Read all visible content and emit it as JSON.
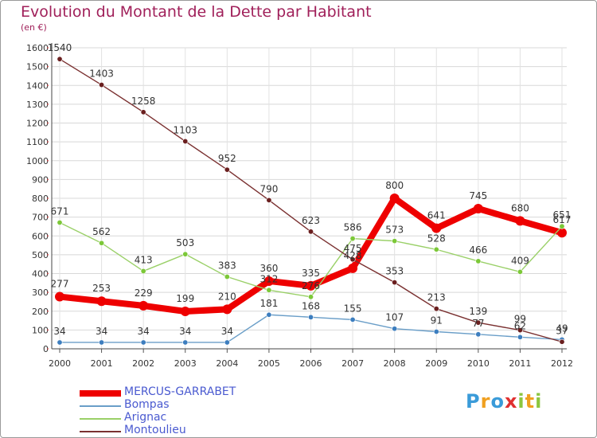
{
  "title": "Evolution du Montant de la Dette par Habitant",
  "subtitle": "(en €)",
  "brand": "Proxiti",
  "brand_letters": [
    {
      "ch": "P",
      "color": "#3a9bd9"
    },
    {
      "ch": "r",
      "color": "#f0a020"
    },
    {
      "ch": "o",
      "color": "#3a9bd9"
    },
    {
      "ch": "x",
      "color": "#e03030"
    },
    {
      "ch": "i",
      "color": "#8cc63f"
    },
    {
      "ch": "t",
      "color": "#f0a020"
    },
    {
      "ch": "i",
      "color": "#8cc63f"
    }
  ],
  "chart_data": {
    "type": "line",
    "categories": [
      "2000",
      "2001",
      "2002",
      "2003",
      "2004",
      "2005",
      "2006",
      "2007",
      "2008",
      "2009",
      "2010",
      "2011",
      "2012"
    ],
    "ylim": [
      0,
      1600
    ],
    "yticks": [
      0,
      100,
      200,
      300,
      400,
      500,
      600,
      700,
      800,
      900,
      1000,
      1100,
      1200,
      1300,
      1400,
      1500,
      1600
    ],
    "grid": true,
    "legend_position": "bottom-left",
    "series": [
      {
        "name": "MERCUS-GARRABET",
        "color": "#ee0000",
        "marker_color": "#ee0000",
        "values": [
          277,
          253,
          229,
          199,
          210,
          360,
          335,
          428,
          800,
          641,
          745,
          680,
          617
        ],
        "labels": [
          "277",
          "253",
          "229",
          "199",
          "210",
          "360",
          "335",
          "428",
          "800",
          "641",
          "745",
          "680",
          "617"
        ]
      },
      {
        "name": "Bompas",
        "color": "#6a9ec8",
        "marker_color": "#3d7ebf",
        "values": [
          34,
          34,
          34,
          34,
          34,
          181,
          168,
          155,
          107,
          91,
          77,
          62,
          49
        ],
        "labels": [
          "34",
          "34",
          "34",
          "34",
          "34",
          "181",
          "168",
          "155",
          "107",
          "91",
          "77",
          "62",
          "49"
        ]
      },
      {
        "name": "Arignac",
        "color": "#9ad068",
        "marker_color": "#7cc838",
        "values": [
          671,
          562,
          413,
          503,
          383,
          312,
          276,
          586,
          573,
          528,
          466,
          409,
          651
        ],
        "labels": [
          "671",
          "562",
          "413",
          "503",
          "383",
          "312",
          "276",
          "586",
          "573",
          "528",
          "466",
          "409",
          "651"
        ]
      },
      {
        "name": "Montoulieu",
        "color": "#7a3030",
        "marker_color": "#6a1f1f",
        "values": [
          1540,
          1403,
          1258,
          1103,
          952,
          790,
          623,
          475,
          353,
          213,
          139,
          99,
          37
        ],
        "labels": [
          "1540",
          "1403",
          "1258",
          "1103",
          "952",
          "790",
          "623",
          "475",
          "353",
          "213",
          "139",
          "99",
          "37"
        ]
      }
    ]
  }
}
